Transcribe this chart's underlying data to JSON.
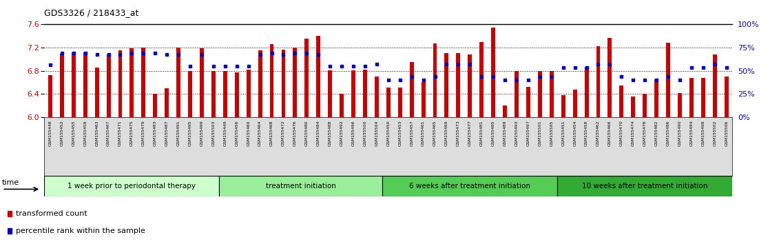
{
  "title": "GDS3326 / 218433_at",
  "ylim": [
    6.0,
    7.6
  ],
  "yticks": [
    6.0,
    6.4,
    6.8,
    7.2,
    7.6
  ],
  "bar_color": "#cc0000",
  "dot_color": "#0000cc",
  "groups": [
    {
      "label": "1 week prior to periodontal therapy",
      "color": "#ccffcc",
      "start": 0,
      "end": 15
    },
    {
      "label": "treatment initiation",
      "color": "#aaddaa",
      "start": 15,
      "end": 29
    },
    {
      "label": "6 weeks after treatment initiation",
      "color": "#66cc66",
      "start": 29,
      "end": 44
    },
    {
      "label": "10 weeks after treatment initiation",
      "color": "#33bb33",
      "start": 44,
      "end": 59
    }
  ],
  "samples": [
    "GSM155448",
    "GSM155452",
    "GSM155455",
    "GSM155459",
    "GSM155463",
    "GSM155467",
    "GSM155471",
    "GSM155475",
    "GSM155479",
    "GSM155483",
    "GSM155487",
    "GSM155491",
    "GSM155495",
    "GSM155499",
    "GSM155503",
    "GSM155449",
    "GSM155456",
    "GSM155460",
    "GSM155464",
    "GSM155468",
    "GSM155472",
    "GSM155476",
    "GSM155480",
    "GSM155484",
    "GSM155488",
    "GSM155492",
    "GSM155496",
    "GSM155500",
    "GSM155504",
    "GSM155450",
    "GSM155453",
    "GSM155457",
    "GSM155461",
    "GSM155465",
    "GSM155469",
    "GSM155473",
    "GSM155477",
    "GSM155481",
    "GSM155485",
    "GSM155489",
    "GSM155493",
    "GSM155497",
    "GSM155501",
    "GSM155505",
    "GSM155451",
    "GSM155454",
    "GSM155458",
    "GSM155462",
    "GSM155466",
    "GSM155470",
    "GSM155474",
    "GSM155478",
    "GSM155482",
    "GSM155486",
    "GSM155490",
    "GSM155494",
    "GSM155498",
    "GSM155502",
    "GSM155506"
  ],
  "bar_values": [
    6.73,
    7.09,
    7.12,
    7.12,
    6.85,
    7.08,
    7.15,
    7.19,
    7.2,
    6.4,
    6.5,
    7.2,
    6.8,
    7.19,
    6.8,
    6.8,
    6.77,
    6.82,
    7.15,
    7.26,
    7.16,
    7.2,
    7.35,
    7.4,
    6.81,
    6.4,
    6.81,
    6.82,
    6.7,
    6.51,
    6.51,
    6.95,
    6.6,
    7.27,
    7.1,
    7.1,
    7.08,
    7.3,
    7.55,
    6.2,
    6.8,
    6.52,
    6.8,
    6.8,
    6.38,
    6.47,
    6.87,
    7.22,
    7.37,
    6.55,
    6.35,
    6.4,
    6.65,
    7.28,
    6.42,
    6.68,
    6.68,
    7.08,
    6.7
  ],
  "dot_values": [
    6.9,
    7.1,
    7.1,
    7.1,
    7.08,
    7.08,
    7.08,
    7.1,
    7.1,
    7.1,
    7.08,
    7.08,
    6.88,
    7.08,
    6.88,
    6.88,
    6.88,
    6.88,
    7.08,
    7.1,
    7.08,
    7.1,
    7.1,
    7.08,
    6.88,
    6.88,
    6.88,
    6.88,
    6.92,
    6.64,
    6.64,
    6.7,
    6.64,
    6.7,
    6.92,
    6.92,
    6.92,
    6.7,
    6.7,
    6.64,
    6.64,
    6.64,
    6.7,
    6.7,
    6.86,
    6.86,
    6.86,
    6.92,
    6.92,
    6.7,
    6.64,
    6.64,
    6.64,
    6.7,
    6.64,
    6.86,
    6.86,
    6.92,
    6.86
  ],
  "legend_items": [
    {
      "color": "#cc0000",
      "label": "transformed count"
    },
    {
      "color": "#0000cc",
      "label": "percentile rank within the sample"
    }
  ]
}
